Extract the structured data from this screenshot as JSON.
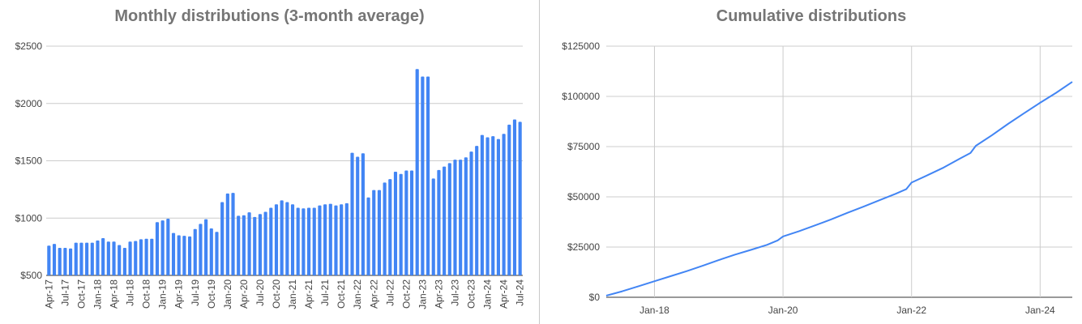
{
  "chart_data": [
    {
      "type": "bar",
      "title": "Monthly distributions (3-month average)",
      "xlabel": "",
      "ylabel": "",
      "ylim": [
        500,
        2500
      ],
      "yticks": [
        "$500",
        "$1000",
        "$1500",
        "$2000",
        "$2500"
      ],
      "ytick_values": [
        500,
        1000,
        1500,
        2000,
        2500
      ],
      "grid": true,
      "color": "#4285f4",
      "categories": [
        "Apr-17",
        "May-17",
        "Jun-17",
        "Jul-17",
        "Aug-17",
        "Sep-17",
        "Oct-17",
        "Nov-17",
        "Dec-17",
        "Jan-18",
        "Feb-18",
        "Mar-18",
        "Apr-18",
        "May-18",
        "Jun-18",
        "Jul-18",
        "Aug-18",
        "Sep-18",
        "Oct-18",
        "Nov-18",
        "Dec-18",
        "Jan-19",
        "Feb-19",
        "Mar-19",
        "Apr-19",
        "May-19",
        "Jun-19",
        "Jul-19",
        "Aug-19",
        "Sep-19",
        "Oct-19",
        "Nov-19",
        "Dec-19",
        "Jan-20",
        "Feb-20",
        "Mar-20",
        "Apr-20",
        "May-20",
        "Jun-20",
        "Jul-20",
        "Aug-20",
        "Sep-20",
        "Oct-20",
        "Nov-20",
        "Dec-20",
        "Jan-21",
        "Feb-21",
        "Mar-21",
        "Apr-21",
        "May-21",
        "Jun-21",
        "Jul-21",
        "Aug-21",
        "Sep-21",
        "Oct-21",
        "Nov-21",
        "Dec-21",
        "Jan-22",
        "Feb-22",
        "Mar-22",
        "Apr-22",
        "May-22",
        "Jun-22",
        "Jul-22",
        "Aug-22",
        "Sep-22",
        "Oct-22",
        "Nov-22",
        "Dec-22",
        "Jan-23",
        "Feb-23",
        "Mar-23",
        "Apr-23",
        "May-23",
        "Jun-23",
        "Jul-23",
        "Aug-23",
        "Sep-23",
        "Oct-23",
        "Nov-23",
        "Dec-23",
        "Jan-24",
        "Feb-24",
        "Mar-24",
        "Apr-24",
        "May-24",
        "Jun-24",
        "Jul-24"
      ],
      "tick_labels": [
        "Apr-17",
        "Jul-17",
        "Oct-17",
        "Jan-18",
        "Apr-18",
        "Jul-18",
        "Oct-18",
        "Jan-19",
        "Apr-19",
        "Jul-19",
        "Oct-19",
        "Jan-20",
        "Apr-20",
        "Jul-20",
        "Oct-20",
        "Jan-21",
        "Apr-21",
        "Jul-21",
        "Oct-21",
        "Jan-22",
        "Apr-22",
        "Jul-22",
        "Oct-22",
        "Jan-23",
        "Apr-23",
        "Jul-23",
        "Oct-23",
        "Jan-24",
        "Apr-24",
        "Jul-24"
      ],
      "values": [
        760,
        775,
        740,
        740,
        735,
        785,
        785,
        785,
        785,
        805,
        825,
        795,
        795,
        765,
        740,
        795,
        800,
        815,
        820,
        820,
        965,
        980,
        995,
        870,
        850,
        845,
        840,
        905,
        950,
        990,
        910,
        880,
        1140,
        1215,
        1220,
        1020,
        1025,
        1050,
        1010,
        1035,
        1055,
        1090,
        1120,
        1155,
        1140,
        1120,
        1090,
        1085,
        1090,
        1090,
        1110,
        1120,
        1125,
        1110,
        1120,
        1130,
        1570,
        1535,
        1565,
        1180,
        1245,
        1245,
        1310,
        1340,
        1405,
        1385,
        1415,
        1415,
        2300,
        2235,
        2235,
        1345,
        1420,
        1450,
        1480,
        1510,
        1510,
        1530,
        1580,
        1630,
        1725,
        1705,
        1715,
        1690,
        1735,
        1815,
        1860,
        1840
      ]
    },
    {
      "type": "line",
      "title": "Cumulative distributions",
      "xlabel": "",
      "ylabel": "",
      "ylim": [
        0,
        125000
      ],
      "yticks": [
        "$0",
        "$25000",
        "$50000",
        "$75000",
        "$100000",
        "$125000"
      ],
      "ytick_values": [
        0,
        25000,
        50000,
        75000,
        100000,
        125000
      ],
      "xlim": [
        "2017-04",
        "2024-07"
      ],
      "xticks": [
        "Jan-18",
        "Jan-20",
        "Jan-22",
        "Jan-24"
      ],
      "xtick_values": [
        "2018-01",
        "2020-01",
        "2022-01",
        "2024-01"
      ],
      "grid": true,
      "color": "#4285f4",
      "x": [
        "2017-04",
        "2017-07",
        "2017-10",
        "2018-01",
        "2018-04",
        "2018-07",
        "2018-10",
        "2019-01",
        "2019-04",
        "2019-07",
        "2019-10",
        "2019-12",
        "2020-01",
        "2020-04",
        "2020-07",
        "2020-10",
        "2021-01",
        "2021-04",
        "2021-07",
        "2021-10",
        "2021-12",
        "2022-01",
        "2022-04",
        "2022-07",
        "2022-10",
        "2022-12",
        "2023-01",
        "2023-04",
        "2023-07",
        "2023-10",
        "2024-01",
        "2024-04",
        "2024-07"
      ],
      "y": [
        800,
        3000,
        5500,
        8000,
        10500,
        13000,
        15700,
        18500,
        21200,
        23600,
        26100,
        28300,
        30300,
        32900,
        35800,
        38800,
        42000,
        45100,
        48300,
        51500,
        53800,
        57100,
        60800,
        64600,
        69000,
        71800,
        75400,
        80700,
        86300,
        91600,
        96800,
        101800,
        107200
      ]
    }
  ]
}
